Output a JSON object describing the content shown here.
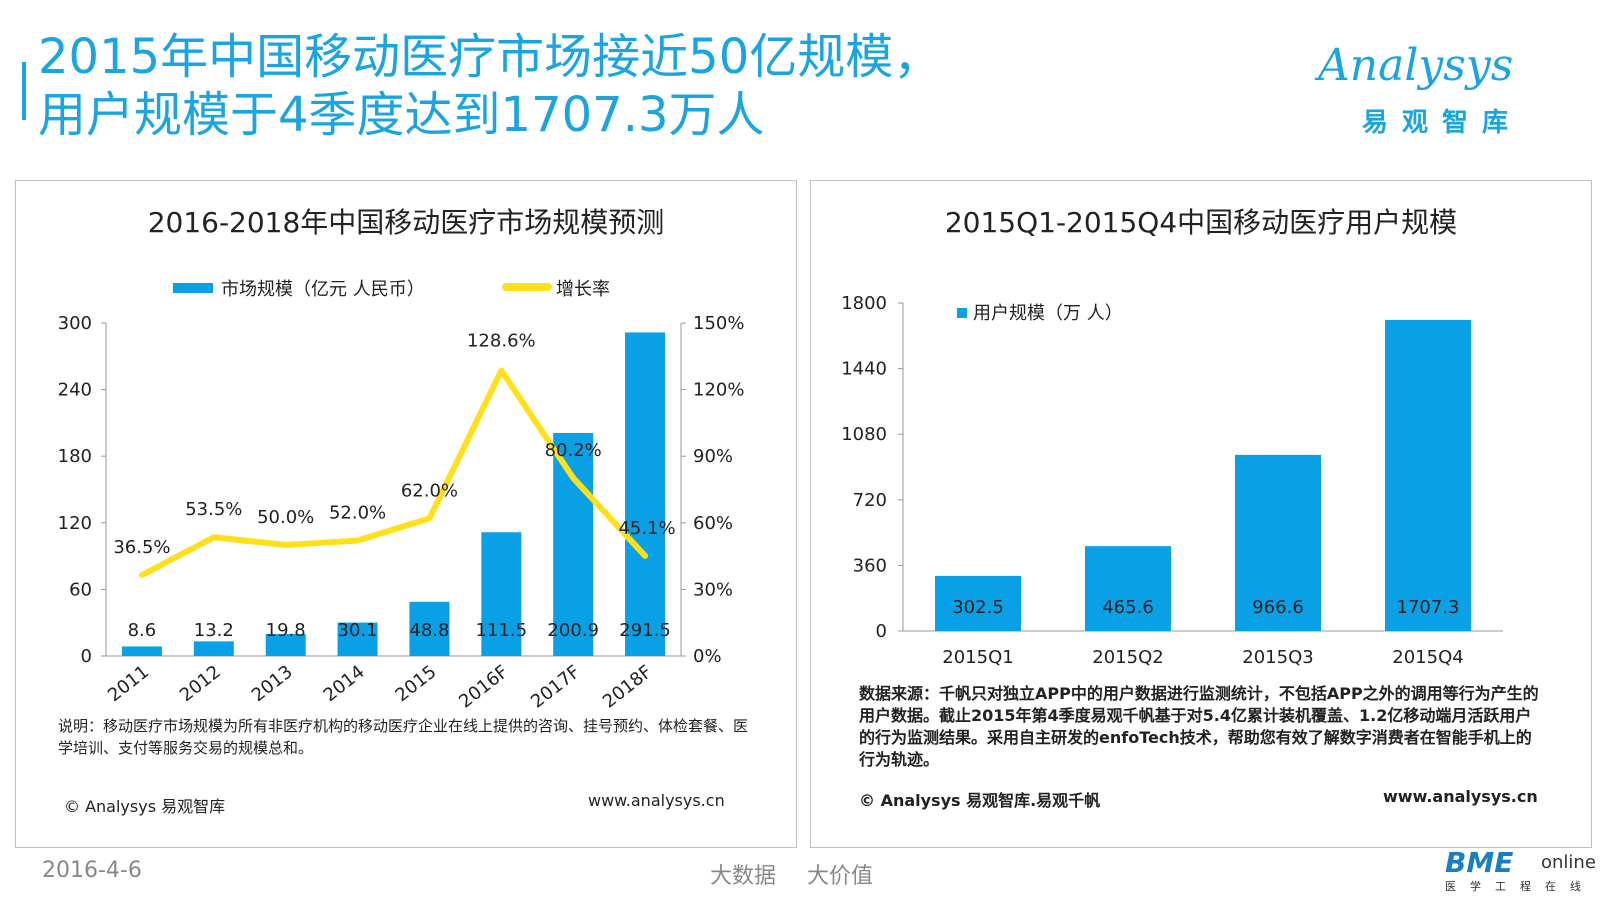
{
  "page": {
    "title_line1": "2015年中国移动医疗市场接近50亿规模，",
    "title_line2": "用户规模于4季度达到1707.3万人",
    "date": "2016-4-6",
    "slogan_1": "大数据",
    "slogan_2": "大价值"
  },
  "logo": {
    "word": "Analysys",
    "cn": "易观智库"
  },
  "partner_logo": {
    "main": "BME",
    "online": "online",
    "sub": "医学工程在线"
  },
  "colors": {
    "accent": "#1aa4e0",
    "bar": "#0aa0e6",
    "line": "#ffe01a"
  },
  "left_panel": {
    "note": "说明：移动医疗市场规模为所有非医疗机构的移动医疗企业在线上提供的咨询、挂号预约、体检套餐、医学培训、支付等服务交易的规模总和。",
    "copyright": "© Analysys 易观智库",
    "website": "www.analysys.cn"
  },
  "right_panel": {
    "source_note": "数据来源：千帆只对独立APP中的用户数据进行监测统计，不包括APP之外的调用等行为产生的用户数据。截止2015年第4季度易观千帆基于对5.4亿累计装机覆盖、1.2亿移动端月活跃用户的行为监测结果。采用自主研发的enfoTech技术，帮助您有效了解数字消费者在智能手机上的行为轨迹。",
    "copyright": "© Analysys 易观智库.易观千帆",
    "website": "www.analysys.cn"
  },
  "chart_data": [
    {
      "type": "bar",
      "title": "2016-2018年中国移动医疗市场规模预测",
      "categories": [
        "2011",
        "2012",
        "2013",
        "2014",
        "2015",
        "2016F",
        "2017F",
        "2018F"
      ],
      "series": [
        {
          "name": "市场规模（亿元 人民币）",
          "type": "bar",
          "axis": "left",
          "values": [
            8.6,
            13.2,
            19.8,
            30.1,
            48.8,
            111.5,
            200.9,
            291.5
          ],
          "labels": [
            "8.6",
            "13.2",
            "19.8",
            "30.1",
            "48.8",
            "111.5",
            "200.9",
            "291.5"
          ]
        },
        {
          "name": "增长率",
          "type": "line",
          "axis": "right",
          "values": [
            36.5,
            53.5,
            50.0,
            52.0,
            62.0,
            128.6,
            80.2,
            45.1
          ],
          "labels": [
            "36.5%",
            "53.5%",
            "50.0%",
            "52.0%",
            "62.0%",
            "128.6%",
            "80.2%",
            "45.1%"
          ]
        }
      ],
      "ylim": [
        0,
        300
      ],
      "yticks": [
        "0",
        "60",
        "120",
        "180",
        "240",
        "300"
      ],
      "y2lim": [
        0,
        150
      ],
      "y2ticks": [
        "0%",
        "30%",
        "60%",
        "90%",
        "120%",
        "150%"
      ],
      "legend_position": "top",
      "grid": false
    },
    {
      "type": "bar",
      "title": "2015Q1-2015Q4中国移动医疗用户规模",
      "categories": [
        "2015Q1",
        "2015Q2",
        "2015Q3",
        "2015Q4"
      ],
      "series": [
        {
          "name": "用户规模（万 人）",
          "values": [
            302.5,
            465.6,
            966.6,
            1707.3
          ],
          "labels": [
            "302.5",
            "465.6",
            "966.6",
            "1707.3"
          ]
        }
      ],
      "ylim": [
        0,
        1800
      ],
      "yticks": [
        "0",
        "360",
        "720",
        "1080",
        "1440",
        "1800"
      ],
      "legend_position": "top-left",
      "grid": false
    }
  ]
}
